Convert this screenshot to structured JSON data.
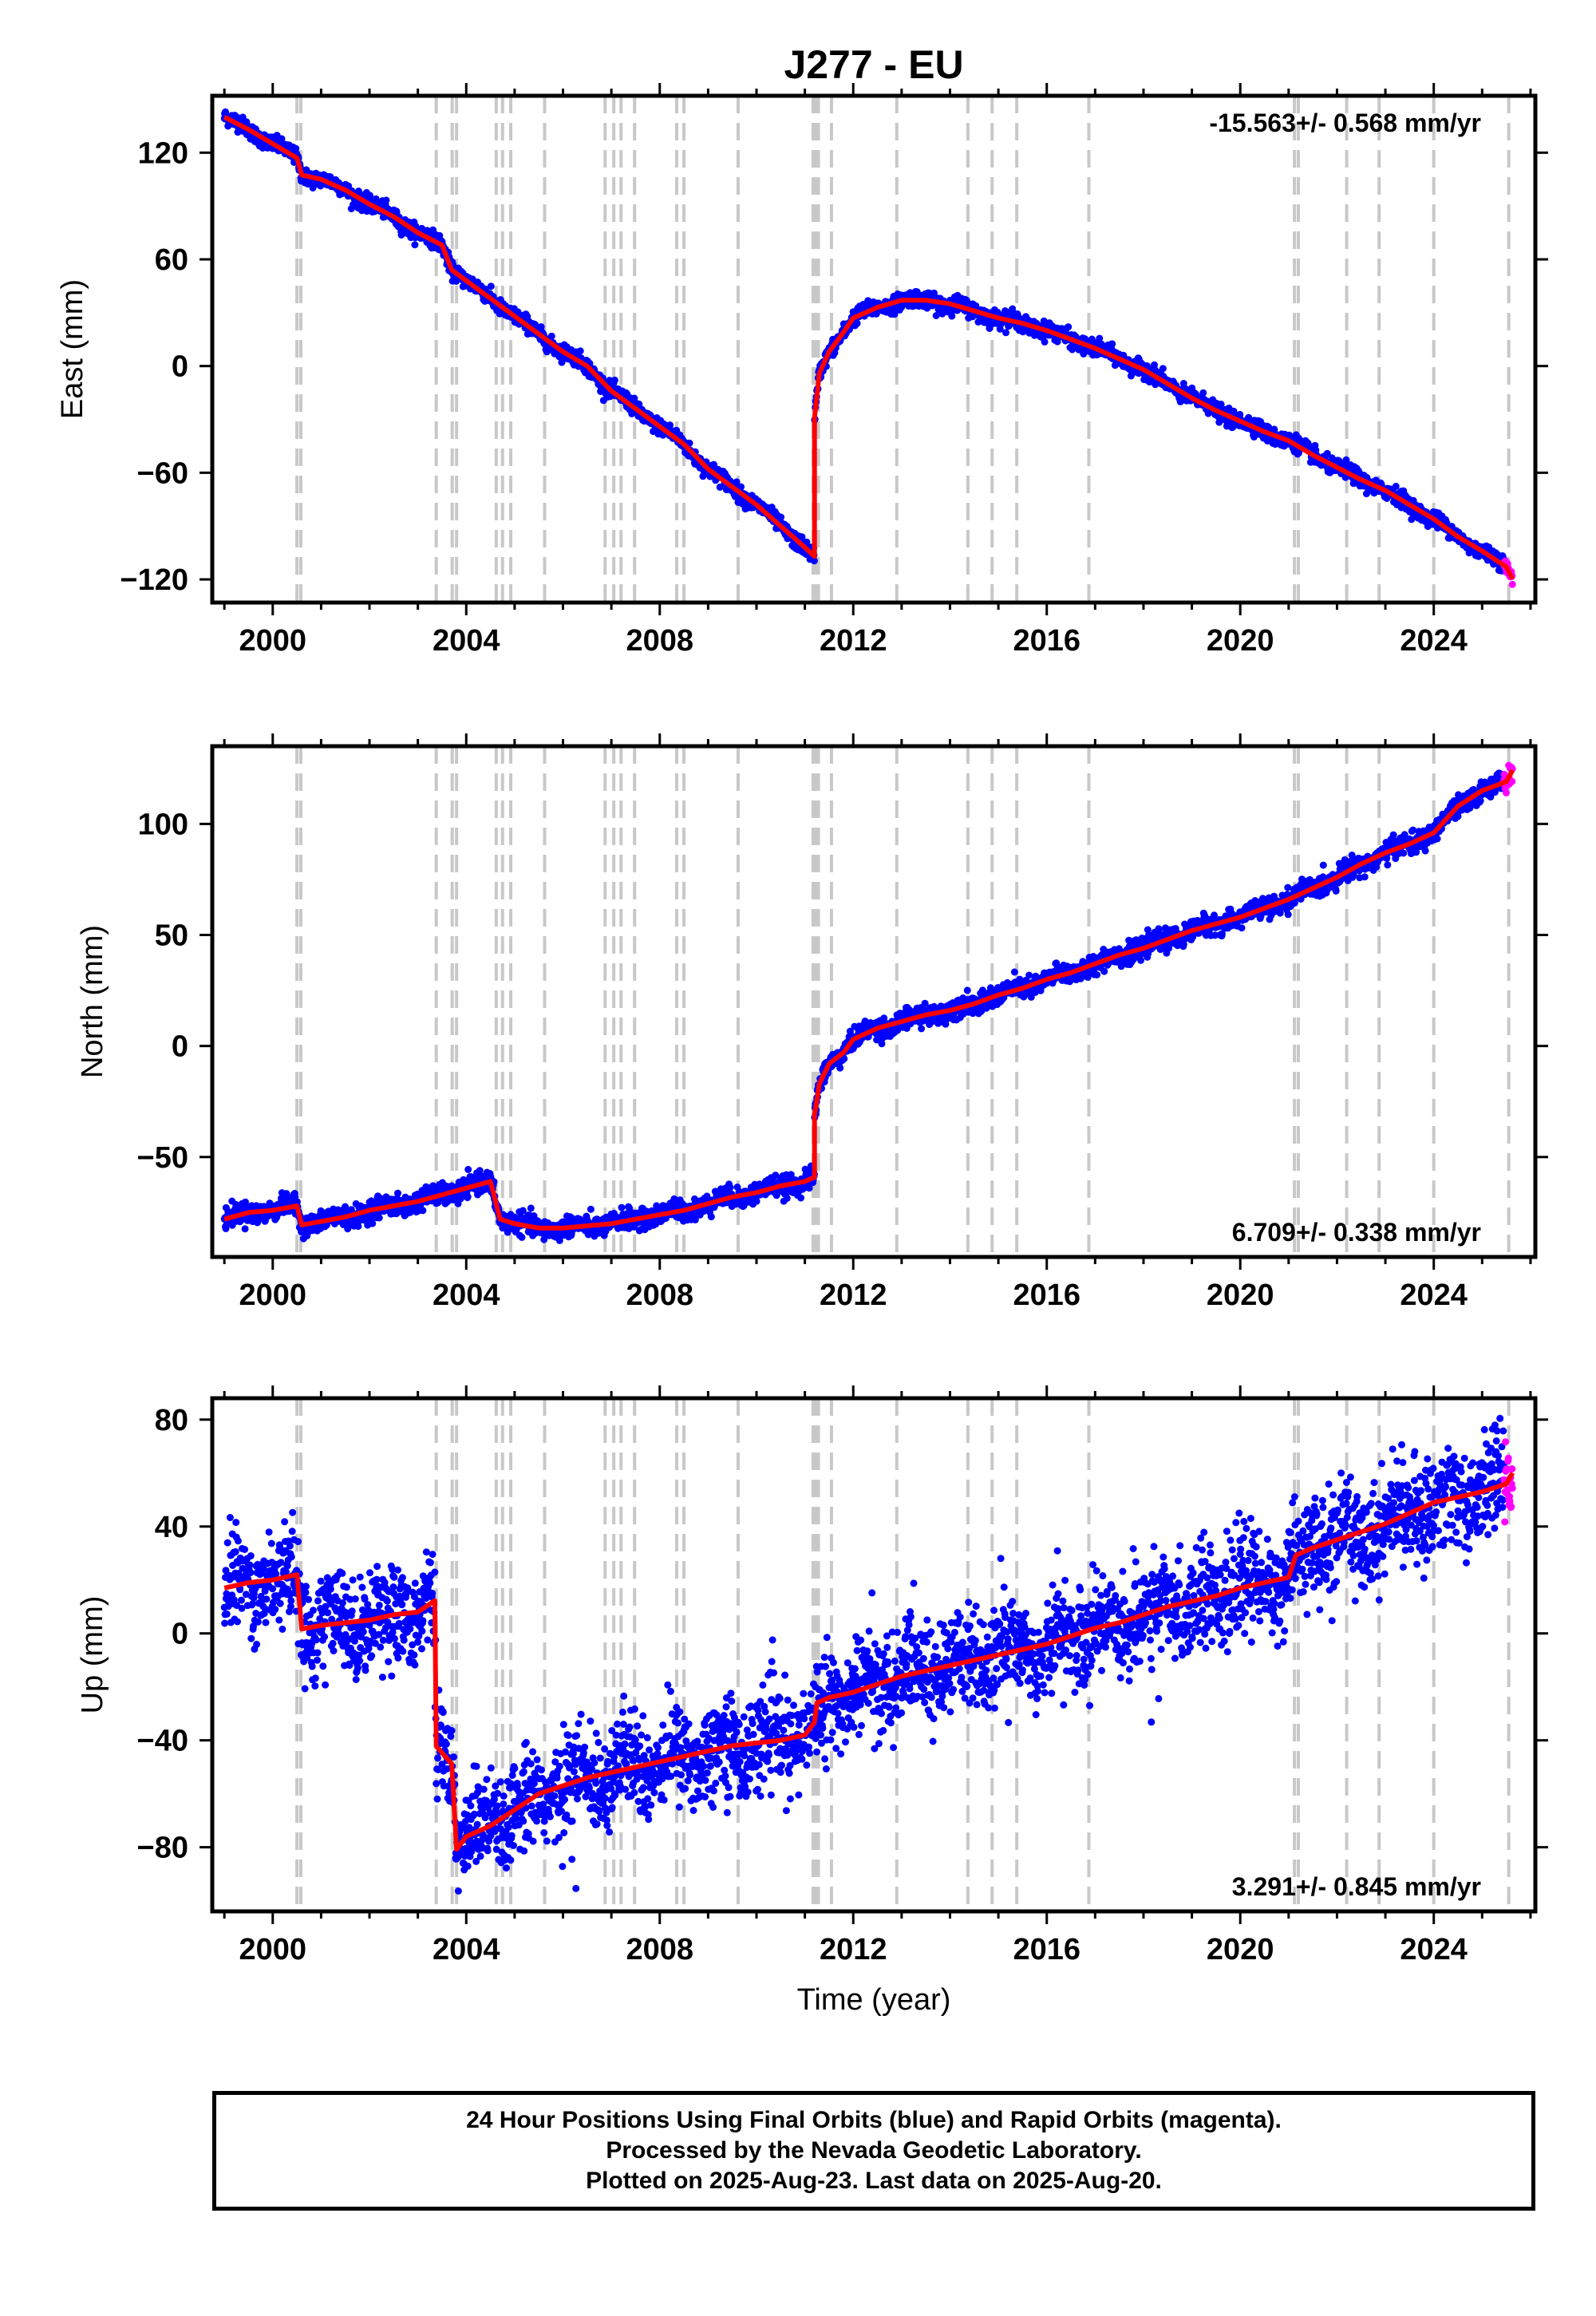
{
  "title": "J277 - EU",
  "x_axis_label": "Time (year)",
  "footer": {
    "line1": "24 Hour Positions Using Final Orbits (blue) and Rapid Orbits (magenta).",
    "line2": "Processed by the Nevada Geodetic Laboratory.",
    "line3": "Plotted on 2025-Aug-23. Last data on 2025-Aug-20."
  },
  "colors": {
    "final_orbits": "#0000ff",
    "rapid_orbits": "#ff00ff",
    "model_fit": "#ff0000",
    "event_lines": "#c8c8c8"
  },
  "chart_data": [
    {
      "type": "scatter",
      "name": "east",
      "ylabel": "East (mm)",
      "xlim": [
        1998.75,
        2026.1
      ],
      "ylim": [
        -133,
        152
      ],
      "xticks": [
        2000,
        2004,
        2008,
        2012,
        2016,
        2020,
        2024
      ],
      "yticks": [
        -120,
        -60,
        0,
        60,
        120
      ],
      "velocity_label": "-15.563+/- 0.568 mm/yr",
      "velocity_position": "top-right",
      "event_lines": [
        2000.5,
        2000.58,
        2003.38,
        2003.71,
        2003.8,
        2004.62,
        2004.75,
        2004.92,
        2005.62,
        2006.87,
        2007.05,
        2007.2,
        2007.48,
        2008.35,
        2008.5,
        2009.62,
        2011.17,
        2011.22,
        2011.28,
        2011.55,
        2012.9,
        2014.37,
        2014.87,
        2015.38,
        2016.87,
        2021.12,
        2021.2,
        2022.2,
        2022.87,
        2024.0,
        2025.55
      ],
      "rapid_start": 2025.45,
      "fit": [
        [
          1999.0,
          140
        ],
        [
          1999.5,
          133
        ],
        [
          2000.0,
          125
        ],
        [
          2000.5,
          117
        ],
        [
          2000.6,
          108
        ],
        [
          2001.0,
          105
        ],
        [
          2001.5,
          99
        ],
        [
          2002.0,
          91
        ],
        [
          2002.5,
          84
        ],
        [
          2003.0,
          75
        ],
        [
          2003.5,
          68
        ],
        [
          2003.7,
          55
        ],
        [
          2004.0,
          48
        ],
        [
          2004.5,
          38
        ],
        [
          2005.0,
          28
        ],
        [
          2005.5,
          18
        ],
        [
          2006.0,
          8
        ],
        [
          2006.5,
          0
        ],
        [
          2007.0,
          -14
        ],
        [
          2007.5,
          -24
        ],
        [
          2008.0,
          -34
        ],
        [
          2008.5,
          -44
        ],
        [
          2009.0,
          -58
        ],
        [
          2009.5,
          -68
        ],
        [
          2010.0,
          -78
        ],
        [
          2010.5,
          -90
        ],
        [
          2011.0,
          -102
        ],
        [
          2011.2,
          -108
        ],
        [
          2011.2,
          -30
        ],
        [
          2011.3,
          -5
        ],
        [
          2011.5,
          8
        ],
        [
          2011.8,
          20
        ],
        [
          2012.0,
          27
        ],
        [
          2012.5,
          33
        ],
        [
          2013.0,
          37
        ],
        [
          2013.5,
          37
        ],
        [
          2014.0,
          35
        ],
        [
          2014.5,
          31
        ],
        [
          2015.0,
          27
        ],
        [
          2015.5,
          24
        ],
        [
          2016.0,
          20
        ],
        [
          2016.5,
          15
        ],
        [
          2017.0,
          10
        ],
        [
          2017.5,
          4
        ],
        [
          2018.0,
          -2
        ],
        [
          2018.5,
          -10
        ],
        [
          2019.0,
          -18
        ],
        [
          2019.5,
          -25
        ],
        [
          2020.0,
          -31
        ],
        [
          2020.5,
          -37
        ],
        [
          2021.0,
          -42
        ],
        [
          2021.5,
          -50
        ],
        [
          2022.0,
          -57
        ],
        [
          2022.5,
          -64
        ],
        [
          2023.0,
          -70
        ],
        [
          2023.5,
          -78
        ],
        [
          2024.0,
          -86
        ],
        [
          2024.5,
          -96
        ],
        [
          2025.0,
          -104
        ],
        [
          2025.5,
          -113
        ],
        [
          2025.63,
          -119
        ]
      ]
    },
    {
      "type": "scatter",
      "name": "north",
      "ylabel": "North (mm)",
      "xlim": [
        1998.75,
        2026.1
      ],
      "ylim": [
        -95,
        135
      ],
      "xticks": [
        2000,
        2004,
        2008,
        2012,
        2016,
        2020,
        2024
      ],
      "yticks": [
        -50,
        0,
        50,
        100
      ],
      "velocity_label": "6.709+/- 0.338 mm/yr",
      "velocity_position": "bottom-right",
      "event_lines": [
        2000.5,
        2000.58,
        2003.38,
        2003.71,
        2003.8,
        2004.62,
        2004.75,
        2004.92,
        2005.62,
        2006.87,
        2007.05,
        2007.2,
        2007.48,
        2008.35,
        2008.5,
        2009.62,
        2011.17,
        2011.22,
        2011.28,
        2011.55,
        2012.9,
        2014.37,
        2014.87,
        2015.38,
        2016.87,
        2021.12,
        2021.2,
        2022.2,
        2022.87,
        2024.0,
        2025.55
      ],
      "rapid_start": 2025.45,
      "fit": [
        [
          1999.0,
          -78
        ],
        [
          1999.5,
          -75
        ],
        [
          2000.0,
          -74
        ],
        [
          2000.5,
          -72
        ],
        [
          2000.6,
          -80
        ],
        [
          2001.0,
          -79
        ],
        [
          2001.5,
          -77
        ],
        [
          2002.0,
          -74
        ],
        [
          2002.5,
          -72
        ],
        [
          2003.0,
          -70
        ],
        [
          2003.5,
          -67
        ],
        [
          2004.0,
          -64
        ],
        [
          2004.5,
          -61
        ],
        [
          2004.7,
          -77
        ],
        [
          2005.0,
          -80
        ],
        [
          2005.5,
          -82
        ],
        [
          2006.0,
          -82
        ],
        [
          2006.5,
          -81
        ],
        [
          2007.0,
          -80
        ],
        [
          2007.5,
          -78
        ],
        [
          2008.0,
          -76
        ],
        [
          2008.5,
          -74
        ],
        [
          2009.0,
          -71
        ],
        [
          2009.5,
          -68
        ],
        [
          2010.0,
          -66
        ],
        [
          2010.5,
          -63
        ],
        [
          2011.0,
          -61
        ],
        [
          2011.2,
          -60
        ],
        [
          2011.2,
          -32
        ],
        [
          2011.3,
          -18
        ],
        [
          2011.5,
          -8
        ],
        [
          2011.8,
          -2
        ],
        [
          2012.0,
          3
        ],
        [
          2012.5,
          8
        ],
        [
          2013.0,
          11
        ],
        [
          2013.5,
          14
        ],
        [
          2014.0,
          16
        ],
        [
          2014.5,
          19
        ],
        [
          2015.0,
          23
        ],
        [
          2015.5,
          26
        ],
        [
          2016.0,
          30
        ],
        [
          2016.5,
          33
        ],
        [
          2017.0,
          37
        ],
        [
          2017.5,
          41
        ],
        [
          2018.0,
          44
        ],
        [
          2018.5,
          48
        ],
        [
          2019.0,
          52
        ],
        [
          2019.5,
          55
        ],
        [
          2020.0,
          58
        ],
        [
          2020.5,
          62
        ],
        [
          2021.0,
          66
        ],
        [
          2021.5,
          71
        ],
        [
          2022.0,
          76
        ],
        [
          2022.5,
          82
        ],
        [
          2023.0,
          87
        ],
        [
          2023.5,
          91
        ],
        [
          2024.0,
          96
        ],
        [
          2024.5,
          108
        ],
        [
          2025.0,
          115
        ],
        [
          2025.5,
          119
        ],
        [
          2025.63,
          125
        ]
      ]
    },
    {
      "type": "scatter",
      "name": "up",
      "ylabel": "Up (mm)",
      "xlim": [
        1998.75,
        2026.1
      ],
      "ylim": [
        -104,
        88
      ],
      "xticks": [
        2000,
        2004,
        2008,
        2012,
        2016,
        2020,
        2024
      ],
      "yticks": [
        -80,
        -40,
        0,
        40,
        80
      ],
      "velocity_label": "3.291+/- 0.845 mm/yr",
      "velocity_position": "bottom-right",
      "event_lines": [
        2000.5,
        2000.58,
        2003.38,
        2003.71,
        2003.8,
        2004.62,
        2004.75,
        2004.92,
        2005.62,
        2006.87,
        2007.05,
        2007.2,
        2007.48,
        2008.35,
        2008.5,
        2009.62,
        2011.17,
        2011.22,
        2011.28,
        2011.55,
        2012.9,
        2014.37,
        2014.87,
        2015.38,
        2016.87,
        2021.12,
        2021.2,
        2022.2,
        2022.87,
        2024.0,
        2025.55
      ],
      "rapid_start": 2025.45,
      "fit": [
        [
          1999.0,
          17
        ],
        [
          1999.5,
          19
        ],
        [
          2000.0,
          20
        ],
        [
          2000.5,
          22
        ],
        [
          2000.6,
          4
        ],
        [
          2001.0,
          3
        ],
        [
          2001.5,
          4
        ],
        [
          2002.0,
          5
        ],
        [
          2002.5,
          7
        ],
        [
          2003.0,
          8
        ],
        [
          2003.35,
          9
        ],
        [
          2003.38,
          -45
        ],
        [
          2003.7,
          -45
        ],
        [
          2003.8,
          -77
        ],
        [
          2004.0,
          -76
        ],
        [
          2004.5,
          -72
        ],
        [
          2005.0,
          -66
        ],
        [
          2005.5,
          -60
        ],
        [
          2006.0,
          -57
        ],
        [
          2006.5,
          -54
        ],
        [
          2007.0,
          -52
        ],
        [
          2007.5,
          -50
        ],
        [
          2008.0,
          -48
        ],
        [
          2008.5,
          -46
        ],
        [
          2009.0,
          -44
        ],
        [
          2009.5,
          -42
        ],
        [
          2010.0,
          -41
        ],
        [
          2010.5,
          -40
        ],
        [
          2011.0,
          -38
        ],
        [
          2011.2,
          -37
        ],
        [
          2011.25,
          -30
        ],
        [
          2011.5,
          -24
        ],
        [
          2012.0,
          -22
        ],
        [
          2012.5,
          -19
        ],
        [
          2013.0,
          -16
        ],
        [
          2013.5,
          -14
        ],
        [
          2014.0,
          -12
        ],
        [
          2014.5,
          -10
        ],
        [
          2015.0,
          -8
        ],
        [
          2015.5,
          -6
        ],
        [
          2016.0,
          -4
        ],
        [
          2016.5,
          -1
        ],
        [
          2017.0,
          2
        ],
        [
          2017.5,
          4
        ],
        [
          2018.0,
          7
        ],
        [
          2018.5,
          10
        ],
        [
          2019.0,
          12
        ],
        [
          2019.5,
          14
        ],
        [
          2020.0,
          17
        ],
        [
          2020.5,
          19
        ],
        [
          2021.0,
          21
        ],
        [
          2021.15,
          26
        ],
        [
          2021.5,
          32
        ],
        [
          2022.0,
          35
        ],
        [
          2022.5,
          38
        ],
        [
          2023.0,
          41
        ],
        [
          2023.5,
          45
        ],
        [
          2024.0,
          49
        ],
        [
          2024.5,
          51
        ],
        [
          2025.0,
          53
        ],
        [
          2025.5,
          56
        ],
        [
          2025.63,
          63
        ]
      ]
    }
  ]
}
